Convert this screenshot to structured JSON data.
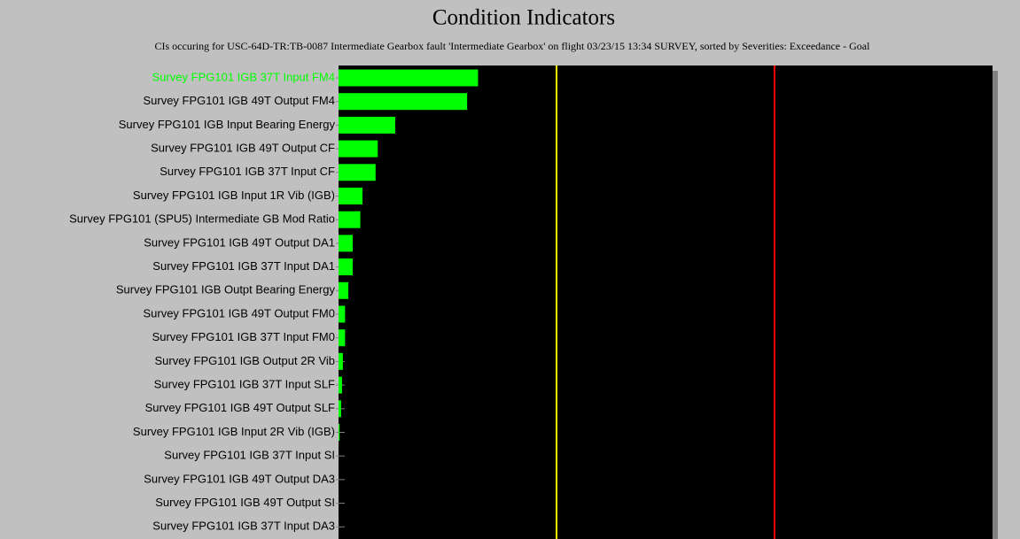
{
  "chart_data": {
    "type": "hbar",
    "title": "Condition Indicators",
    "subtitle": "CIs occuring for USC-64D-TR:TB-0087 Intermediate Gearbox fault 'Intermediate Gearbox' on flight 03/23/15 13:34 SURVEY, sorted by Severities: Exceedance - Goal",
    "categories": [
      "Survey FPG101 IGB 37T Input FM4",
      "Survey FPG101 IGB 49T Output FM4",
      "Survey FPG101 IGB Input Bearing Energy",
      "Survey FPG101 IGB 49T Output CF",
      "Survey FPG101 IGB 37T Input CF",
      "Survey FPG101 IGB Input 1R Vib (IGB)",
      "Survey FPG101 (SPU5) Intermediate GB Mod Ratio",
      "Survey FPG101 IGB 49T Output DA1",
      "Survey FPG101 IGB 37T Input DA1",
      "Survey FPG101 IGB Outpt Bearing Energy",
      "Survey FPG101 IGB 49T Output FM0",
      "Survey FPG101 IGB 37T Input FM0",
      "Survey FPG101 IGB Output 2R Vib",
      "Survey FPG101 IGB 37T Input SLF",
      "Survey FPG101 IGB 49T Output SLF",
      "Survey FPG101 IGB Input 2R Vib (IGB)",
      "Survey FPG101 IGB 37T Input SI",
      "Survey FPG101 IGB 49T Output DA3",
      "Survey FPG101 IGB 49T Output SI",
      "Survey FPG101 IGB 37T Input DA3"
    ],
    "values": [
      0.64,
      0.59,
      0.26,
      0.18,
      0.17,
      0.11,
      0.1,
      0.065,
      0.065,
      0.045,
      0.03,
      0.03,
      0.02,
      0.016,
      0.012,
      0.005,
      0,
      0,
      0,
      0
    ],
    "color": "#00ff00",
    "selected_index": 0,
    "selected_color": "#00ff00",
    "xlim": [
      0,
      3
    ],
    "reference_lines": [
      {
        "value": 1,
        "color": "#ffff00"
      },
      {
        "value": 2,
        "color": "#ff0000"
      }
    ]
  }
}
